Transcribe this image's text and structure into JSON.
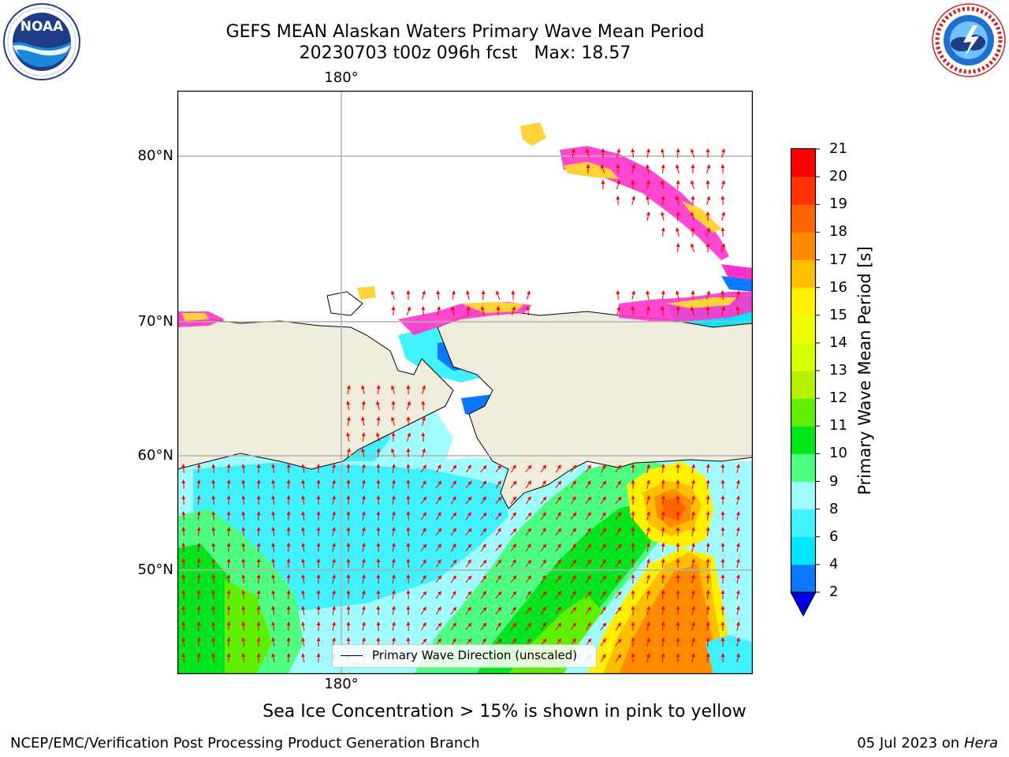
{
  "title": {
    "line1": "GEFS MEAN Alaskan Waters Primary Wave Mean Period",
    "line2": "20230703 t00z 096h fcst   Max: 18.57"
  },
  "logos": {
    "left": {
      "text": "NOAA",
      "ring_text": "NATIONAL OCEANIC AND ATMOSPHERIC ADMINISTRATION · U.S. DEPARTMENT OF COMMERCE"
    },
    "right": {
      "ring_text": "NATIONAL WEATHER SERVICE"
    }
  },
  "map": {
    "lat_labels": [
      "80°N",
      "70°N",
      "60°N",
      "50°N"
    ],
    "lon_label_top": "180°",
    "lon_label_bottom": "180°",
    "legend_label": "Primary Wave Direction (unscaled)",
    "land_color": "#efecdc",
    "arrow_color": "#ff0000",
    "ice_colors": [
      "#ff33cc",
      "#ffd23a"
    ]
  },
  "colorbar": {
    "label": "Primary Wave Mean Period [s]",
    "ticks": [
      "2",
      "4",
      "6",
      "8",
      "9",
      "10",
      "11",
      "12",
      "13",
      "14",
      "15",
      "16",
      "17",
      "18",
      "19",
      "20",
      "21"
    ],
    "colors": [
      "#0a14ff",
      "#0a78ff",
      "#00e6ff",
      "#40f2ff",
      "#9ffcff",
      "#4dff80",
      "#00e61e",
      "#5ef000",
      "#b4f000",
      "#d7ff00",
      "#f0ff00",
      "#fff000",
      "#ffbe00",
      "#ff8c00",
      "#ff6400",
      "#ff3200",
      "#ff0000"
    ],
    "extend_color": "#0000e6"
  },
  "caption": "Sea Ice Concentration > 15% is shown in pink to yellow",
  "footer": {
    "left": "NCEP/EMC/Verification Post Processing Product Generation Branch",
    "date": "05 Jul 2023 on ",
    "machine": "Hera"
  }
}
